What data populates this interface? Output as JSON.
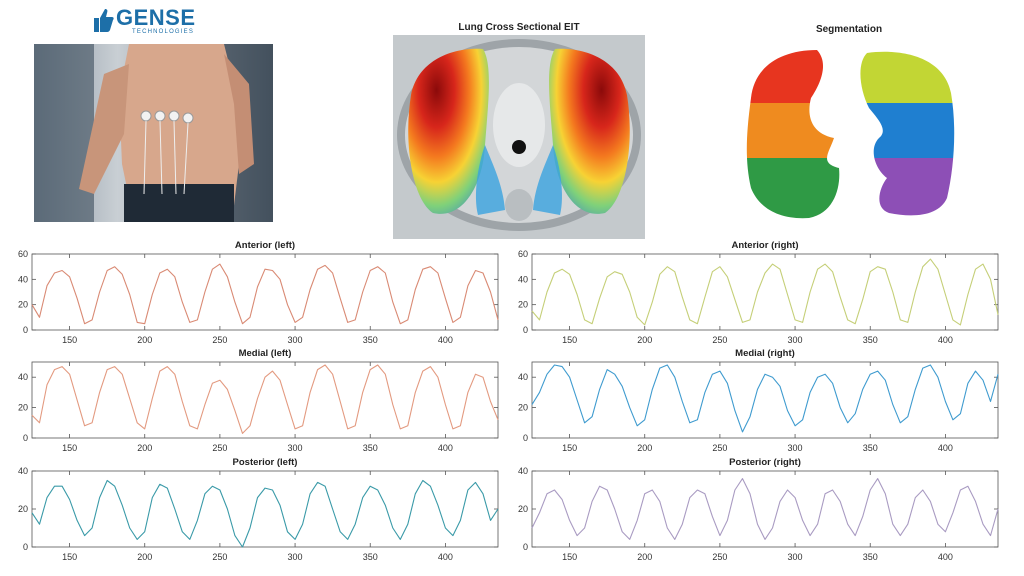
{
  "logo": {
    "name": "GENSE",
    "sub": "TECHNOLOGIES"
  },
  "images": {
    "eit_title": "Lung Cross Sectional EIT",
    "segmentation_title": "Segmentation"
  },
  "colors": {
    "anterior_left": "#d98a74",
    "anterior_right": "#c5cf78",
    "medial_left": "#e39a80",
    "medial_right": "#3f9bcf",
    "posterior_left": "#3a9aa8",
    "posterior_right": "#a99bc2"
  },
  "chart_data": [
    {
      "type": "line",
      "title": "Anterior (left)",
      "xlim": [
        125,
        435
      ],
      "ylim": [
        0,
        60
      ],
      "xticks": [
        150,
        200,
        250,
        300,
        350,
        400
      ],
      "yticks": [
        0,
        20,
        40,
        60
      ],
      "series": [
        {
          "color": "#d98a74",
          "x": [
            125,
            130,
            135,
            140,
            145,
            150,
            155,
            160,
            165,
            170,
            175,
            180,
            185,
            190,
            195,
            200,
            205,
            210,
            215,
            220,
            225,
            230,
            235,
            240,
            245,
            250,
            255,
            260,
            265,
            270,
            275,
            280,
            285,
            290,
            295,
            300,
            305,
            310,
            315,
            320,
            325,
            330,
            335,
            340,
            345,
            350,
            355,
            360,
            365,
            370,
            375,
            380,
            385,
            390,
            395,
            400,
            405,
            410,
            415,
            420,
            425,
            430,
            435
          ],
          "y": [
            20,
            10,
            35,
            45,
            47,
            42,
            25,
            5,
            8,
            30,
            47,
            50,
            44,
            28,
            6,
            5,
            28,
            45,
            48,
            42,
            22,
            6,
            8,
            30,
            48,
            52,
            42,
            22,
            5,
            10,
            34,
            48,
            47,
            40,
            20,
            6,
            10,
            32,
            48,
            51,
            45,
            25,
            6,
            8,
            30,
            47,
            50,
            45,
            22,
            5,
            8,
            32,
            48,
            50,
            45,
            25,
            6,
            10,
            35,
            47,
            45,
            30,
            8
          ]
        }
      ]
    },
    {
      "type": "line",
      "title": "Anterior (right)",
      "xlim": [
        125,
        435
      ],
      "ylim": [
        0,
        60
      ],
      "xticks": [
        150,
        200,
        250,
        300,
        350,
        400
      ],
      "yticks": [
        0,
        20,
        40,
        60
      ],
      "series": [
        {
          "color": "#c5cf78",
          "x": [
            125,
            130,
            135,
            140,
            145,
            150,
            155,
            160,
            165,
            170,
            175,
            180,
            185,
            190,
            195,
            200,
            205,
            210,
            215,
            220,
            225,
            230,
            235,
            240,
            245,
            250,
            255,
            260,
            265,
            270,
            275,
            280,
            285,
            290,
            295,
            300,
            305,
            310,
            315,
            320,
            325,
            330,
            335,
            340,
            345,
            350,
            355,
            360,
            365,
            370,
            375,
            380,
            385,
            390,
            395,
            400,
            405,
            410,
            415,
            420,
            425,
            430,
            435
          ],
          "y": [
            15,
            8,
            30,
            45,
            48,
            44,
            28,
            8,
            5,
            25,
            42,
            46,
            44,
            30,
            10,
            4,
            22,
            44,
            50,
            46,
            26,
            8,
            5,
            26,
            46,
            50,
            42,
            24,
            6,
            8,
            30,
            45,
            52,
            48,
            28,
            8,
            6,
            30,
            48,
            52,
            46,
            26,
            8,
            5,
            24,
            46,
            50,
            48,
            30,
            8,
            6,
            30,
            50,
            56,
            48,
            28,
            8,
            4,
            28,
            48,
            52,
            40,
            12
          ]
        }
      ]
    },
    {
      "type": "line",
      "title": "Medial (left)",
      "xlim": [
        125,
        435
      ],
      "ylim": [
        0,
        50
      ],
      "xticks": [
        150,
        200,
        250,
        300,
        350,
        400
      ],
      "yticks": [
        0,
        20,
        40
      ],
      "series": [
        {
          "color": "#e39a80",
          "x": [
            125,
            130,
            135,
            140,
            145,
            150,
            155,
            160,
            165,
            170,
            175,
            180,
            185,
            190,
            195,
            200,
            205,
            210,
            215,
            220,
            225,
            230,
            235,
            240,
            245,
            250,
            255,
            260,
            265,
            270,
            275,
            280,
            285,
            290,
            295,
            300,
            305,
            310,
            315,
            320,
            325,
            330,
            335,
            340,
            345,
            350,
            355,
            360,
            365,
            370,
            375,
            380,
            385,
            390,
            395,
            400,
            405,
            410,
            415,
            420,
            425,
            430,
            435
          ],
          "y": [
            15,
            10,
            35,
            45,
            47,
            42,
            25,
            8,
            10,
            30,
            45,
            47,
            42,
            26,
            10,
            6,
            26,
            44,
            47,
            42,
            24,
            8,
            6,
            22,
            36,
            38,
            32,
            18,
            3,
            8,
            26,
            40,
            44,
            38,
            22,
            6,
            8,
            30,
            45,
            48,
            42,
            24,
            6,
            8,
            30,
            45,
            48,
            42,
            22,
            6,
            8,
            30,
            44,
            47,
            40,
            22,
            6,
            8,
            30,
            42,
            40,
            24,
            12
          ]
        }
      ]
    },
    {
      "type": "line",
      "title": "Medial (right)",
      "xlim": [
        125,
        435
      ],
      "ylim": [
        0,
        50
      ],
      "xticks": [
        150,
        200,
        250,
        300,
        350,
        400
      ],
      "yticks": [
        0,
        20,
        40
      ],
      "series": [
        {
          "color": "#3f9bcf",
          "x": [
            125,
            130,
            135,
            140,
            145,
            150,
            155,
            160,
            165,
            170,
            175,
            180,
            185,
            190,
            195,
            200,
            205,
            210,
            215,
            220,
            225,
            230,
            235,
            240,
            245,
            250,
            255,
            260,
            265,
            270,
            275,
            280,
            285,
            290,
            295,
            300,
            305,
            310,
            315,
            320,
            325,
            330,
            335,
            340,
            345,
            350,
            355,
            360,
            365,
            370,
            375,
            380,
            385,
            390,
            395,
            400,
            405,
            410,
            415,
            420,
            425,
            430,
            435
          ],
          "y": [
            22,
            30,
            42,
            48,
            47,
            40,
            25,
            10,
            14,
            32,
            45,
            42,
            34,
            20,
            8,
            12,
            32,
            46,
            48,
            40,
            24,
            10,
            12,
            30,
            42,
            44,
            36,
            18,
            4,
            14,
            32,
            42,
            40,
            34,
            18,
            8,
            12,
            30,
            40,
            42,
            36,
            20,
            10,
            16,
            32,
            42,
            44,
            38,
            22,
            10,
            14,
            32,
            46,
            48,
            40,
            24,
            12,
            16,
            36,
            44,
            38,
            24,
            42
          ]
        }
      ]
    },
    {
      "type": "line",
      "title": "Posterior (left)",
      "xlim": [
        125,
        435
      ],
      "ylim": [
        0,
        40
      ],
      "xticks": [
        150,
        200,
        250,
        300,
        350,
        400
      ],
      "yticks": [
        0,
        20,
        40
      ],
      "series": [
        {
          "color": "#3a9aa8",
          "x": [
            125,
            130,
            135,
            140,
            145,
            150,
            155,
            160,
            165,
            170,
            175,
            180,
            185,
            190,
            195,
            200,
            205,
            210,
            215,
            220,
            225,
            230,
            235,
            240,
            245,
            250,
            255,
            260,
            265,
            270,
            275,
            280,
            285,
            290,
            295,
            300,
            305,
            310,
            315,
            320,
            325,
            330,
            335,
            340,
            345,
            350,
            355,
            360,
            365,
            370,
            375,
            380,
            385,
            390,
            395,
            400,
            405,
            410,
            415,
            420,
            425,
            430,
            435
          ],
          "y": [
            18,
            12,
            26,
            32,
            32,
            25,
            14,
            6,
            10,
            26,
            35,
            32,
            22,
            10,
            4,
            8,
            26,
            33,
            31,
            20,
            8,
            4,
            14,
            28,
            32,
            30,
            20,
            6,
            0,
            10,
            26,
            31,
            30,
            22,
            8,
            4,
            12,
            28,
            34,
            32,
            20,
            8,
            4,
            12,
            26,
            32,
            30,
            22,
            10,
            4,
            12,
            28,
            35,
            32,
            22,
            10,
            6,
            14,
            30,
            34,
            28,
            14,
            20
          ]
        }
      ]
    },
    {
      "type": "line",
      "title": "Posterior (right)",
      "xlim": [
        125,
        435
      ],
      "ylim": [
        0,
        40
      ],
      "xticks": [
        150,
        200,
        250,
        300,
        350,
        400
      ],
      "yticks": [
        0,
        20,
        40
      ],
      "series": [
        {
          "color": "#a99bc2",
          "x": [
            125,
            130,
            135,
            140,
            145,
            150,
            155,
            160,
            165,
            170,
            175,
            180,
            185,
            190,
            195,
            200,
            205,
            210,
            215,
            220,
            225,
            230,
            235,
            240,
            245,
            250,
            255,
            260,
            265,
            270,
            275,
            280,
            285,
            290,
            295,
            300,
            305,
            310,
            315,
            320,
            325,
            330,
            335,
            340,
            345,
            350,
            355,
            360,
            365,
            370,
            375,
            380,
            385,
            390,
            395,
            400,
            405,
            410,
            415,
            420,
            425,
            430,
            435
          ],
          "y": [
            10,
            18,
            28,
            30,
            25,
            14,
            6,
            10,
            24,
            32,
            30,
            20,
            8,
            4,
            14,
            28,
            30,
            24,
            10,
            4,
            12,
            26,
            30,
            28,
            16,
            6,
            14,
            30,
            36,
            28,
            12,
            4,
            10,
            24,
            30,
            26,
            14,
            6,
            12,
            28,
            30,
            24,
            12,
            6,
            16,
            30,
            36,
            28,
            12,
            6,
            12,
            26,
            30,
            24,
            12,
            8,
            18,
            30,
            32,
            24,
            12,
            6,
            20
          ]
        }
      ]
    }
  ]
}
